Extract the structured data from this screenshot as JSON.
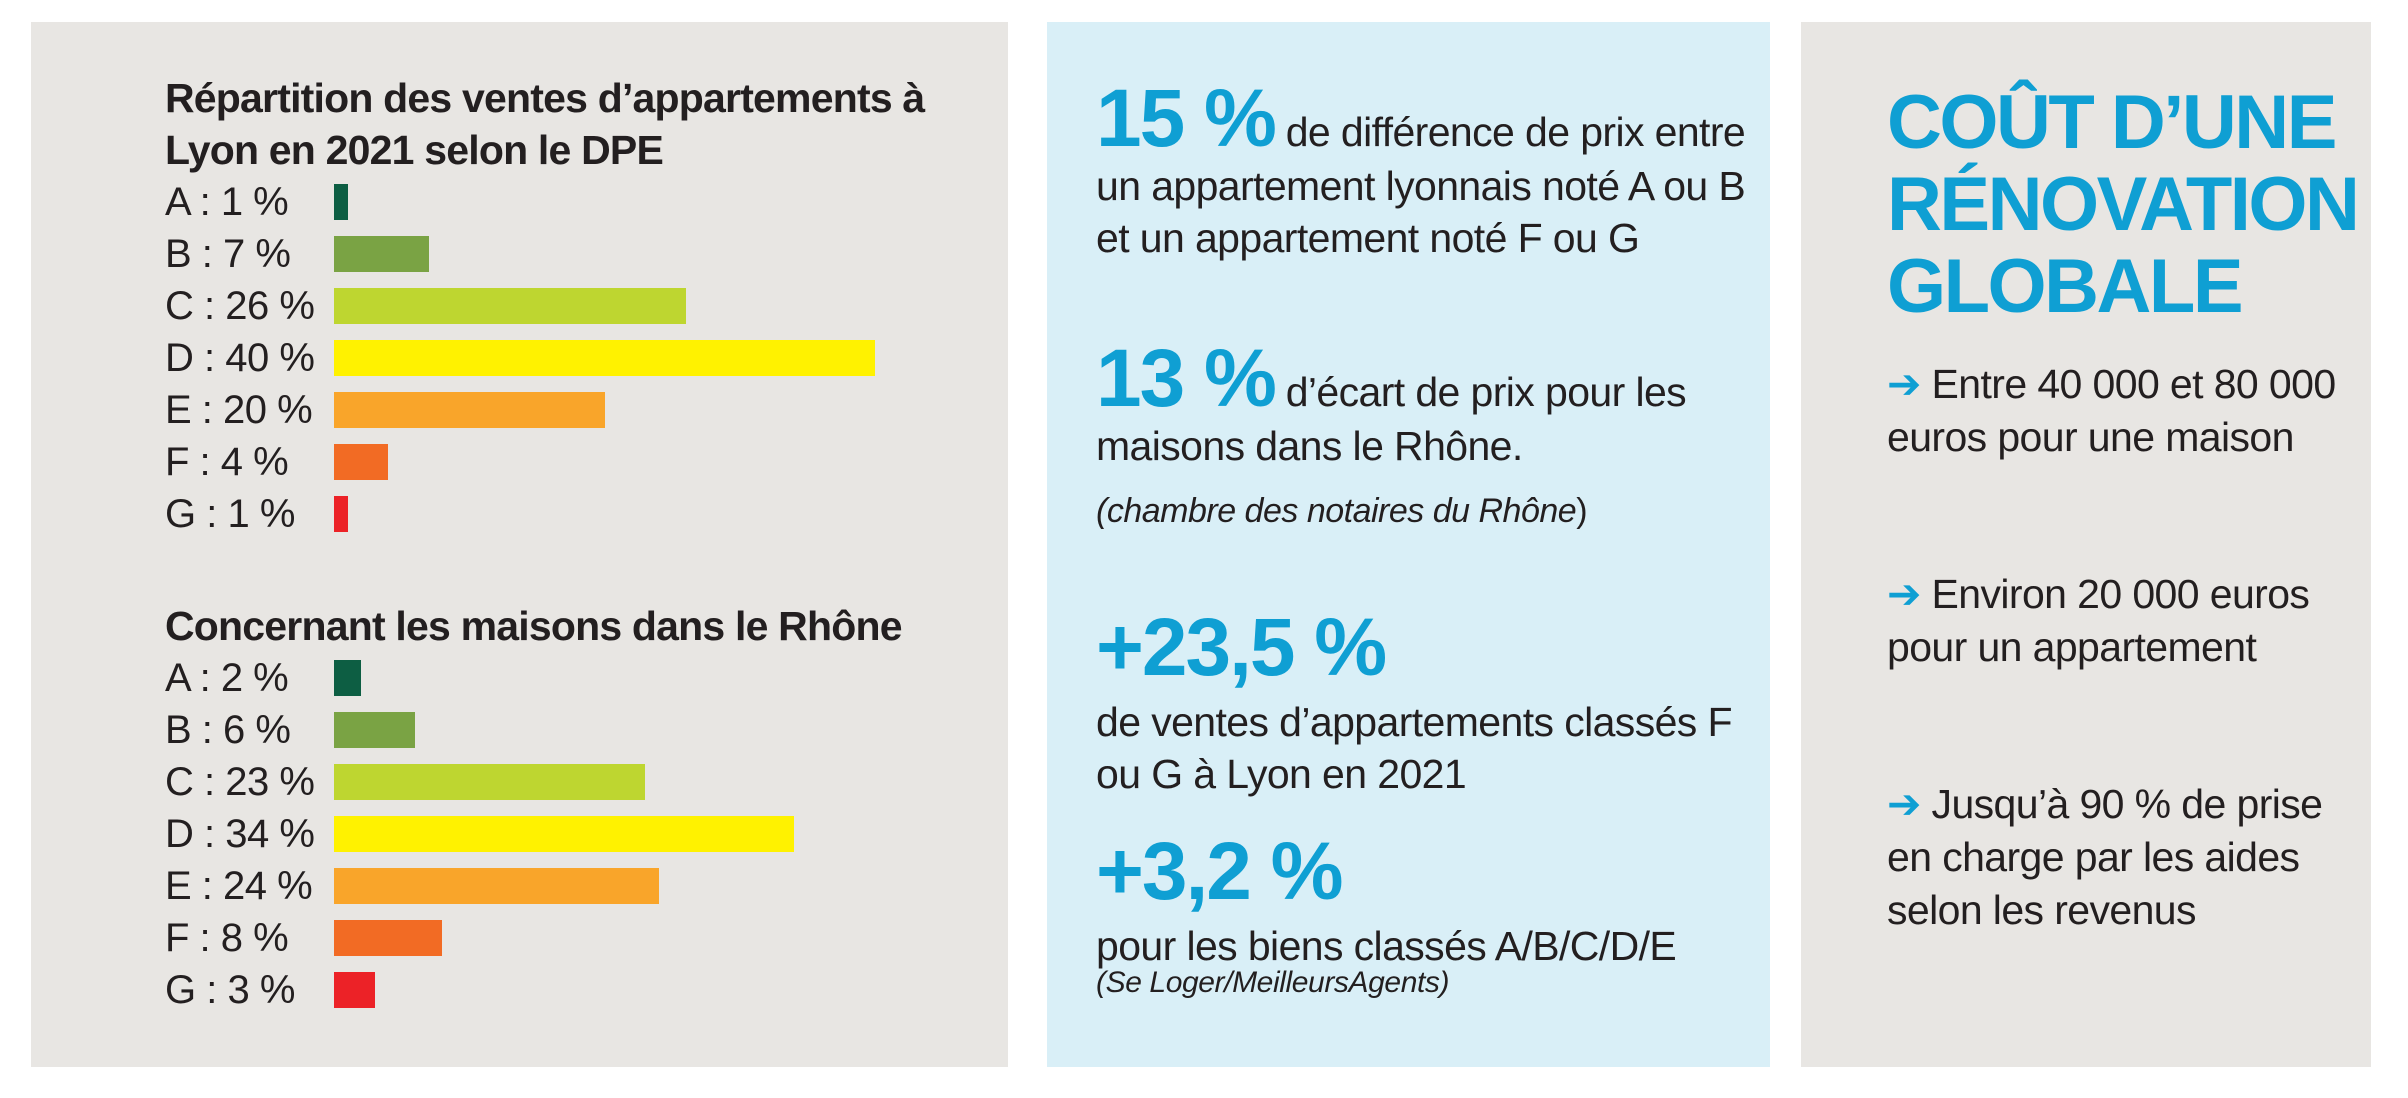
{
  "chart_data": [
    {
      "type": "bar",
      "orientation": "horizontal",
      "title": "Répartition des ventes d’appartements à Lyon en 2021 selon le DPE",
      "categories": [
        "A",
        "B",
        "C",
        "D",
        "E",
        "F",
        "G"
      ],
      "values": [
        1,
        7,
        26,
        40,
        20,
        4,
        1
      ],
      "labels": [
        "A : 1 %",
        "B : 7 %",
        "C : 26 %",
        "D : 40 %",
        "E : 20 %",
        "F : 4 %",
        "G : 1 %"
      ],
      "colors": [
        "#0d5e43",
        "#7aa344",
        "#bed630",
        "#fff200",
        "#f9a52a",
        "#f26b24",
        "#ec2227"
      ],
      "xlim": [
        0,
        40
      ]
    },
    {
      "type": "bar",
      "orientation": "horizontal",
      "title": "Concernant les maisons dans le Rhône",
      "categories": [
        "A",
        "B",
        "C",
        "D",
        "E",
        "F",
        "G"
      ],
      "values": [
        2,
        6,
        23,
        34,
        24,
        8,
        3
      ],
      "labels": [
        "A : 2 %",
        "B : 6 %",
        "C : 23 %",
        "D : 34 %",
        "E : 24 %",
        "F : 8 %",
        "G : 3 %"
      ],
      "colors": [
        "#0d5e43",
        "#7aa344",
        "#bed630",
        "#fff200",
        "#f9a52a",
        "#f26b24",
        "#ec2227"
      ],
      "xlim": [
        0,
        40
      ]
    }
  ],
  "figures": {
    "stat1": {
      "value": "15 %",
      "text": " de différence de prix entre un appartement lyonnais noté A ou B et un appartement noté F ou G"
    },
    "stat2": {
      "value": "13 %",
      "text": " d’écart de prix pour les maisons dans le Rhône."
    },
    "source1": {
      "text": "(chambre des notaires du Rhône",
      "close": ")"
    },
    "stat3": {
      "value": "+23,5 %",
      "text": "de ventes d’appartements classés F ou G à Lyon en 2021"
    },
    "stat4": {
      "value": "+3,2 %",
      "text": "pour les biens classés A/B/C/D/E"
    },
    "source2": "(Se Loger/MeilleursAgents)"
  },
  "renovation": {
    "title": "COÛT D’UNE RÉNOVATION GLOBALE",
    "arrow": "➔",
    "items": [
      " Entre 40 000 et 80 000 euros pour une maison",
      " Environ 20 000 euros pour un appartement",
      " Jusqu’à 90 % de prise en charge par les aides selon les revenus"
    ],
    "accent_color": "#0f9fd3"
  }
}
